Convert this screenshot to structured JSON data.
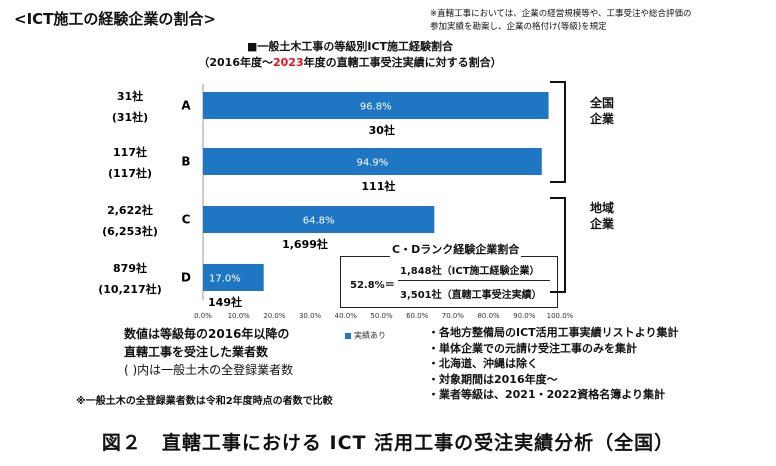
{
  "header": {
    "section_title": "<ICT施工の経験企業の割合>",
    "note_lines": [
      "※直轄工事においては、企業の経営規模等や、工事受注や総合評価の",
      "参加実績を勘案し、企業の格付け(等級)を規定"
    ]
  },
  "chart_data": {
    "type": "bar",
    "orientation": "horizontal",
    "title_line1": "■一般土木工事の等級別ICT施工経験割合",
    "title_line2_pre": "（2016年度～",
    "title_line2_red": "2023",
    "title_line2_post": "年度の直轄工事受注実績に対する割合）",
    "categories": [
      "A",
      "B",
      "C",
      "D"
    ],
    "series": [
      {
        "name": "実績あり",
        "values": [
          96.8,
          94.9,
          64.8,
          17.0
        ],
        "color": "#1f77c4"
      }
    ],
    "value_labels": [
      "96.8%",
      "94.9%",
      "64.8%",
      "17.0%"
    ],
    "experienced_counts": [
      "30社",
      "111社",
      "1,699社",
      "149社"
    ],
    "company_counts": [
      "31社",
      "117社",
      "2,622社",
      "879社"
    ],
    "registered_counts": [
      "(31社)",
      "(117社)",
      "(6,253社)",
      "(10,217社)"
    ],
    "x_ticks": [
      "0.0%",
      "10.0%",
      "20.0%",
      "30.0%",
      "40.0%",
      "50.0%",
      "60.0%",
      "70.0%",
      "80.0%",
      "90.0%",
      "100.0%"
    ],
    "xlim": [
      0,
      100
    ],
    "legend": "実績あり",
    "legend_position": "bottom",
    "grid": false
  },
  "groups": {
    "national": "全国\n企業",
    "regional": "地域\n企業"
  },
  "ratio_box": {
    "title": "C・Dランク経験企業割合",
    "value": "52.8%＝",
    "numerator": "1,848社（ICT施工経験企業）",
    "denominator": "3,501社（直轄工事受注実績）"
  },
  "notes_left": {
    "line1": "数値は等級毎の2016年以降の",
    "line2": "直轄工事を受注した業者数",
    "line3": "( )内は一般土木の全登録業者数"
  },
  "notes_right": [
    "・各地方整備局のICT活用工事実績リストより集計",
    "・単体企業での元請け受注工事のみを集計",
    "・北海道、沖縄は除く",
    "・対象期間は2016年度～",
    "・業者等級は、2021・2022資格名簿より集計"
  ],
  "bottom_note": "※一般土木の全登録業者数は令和2年度時点の者数で比較",
  "figure_caption": "図２　直轄工事における ICT 活用工事の受注実績分析（全国）"
}
